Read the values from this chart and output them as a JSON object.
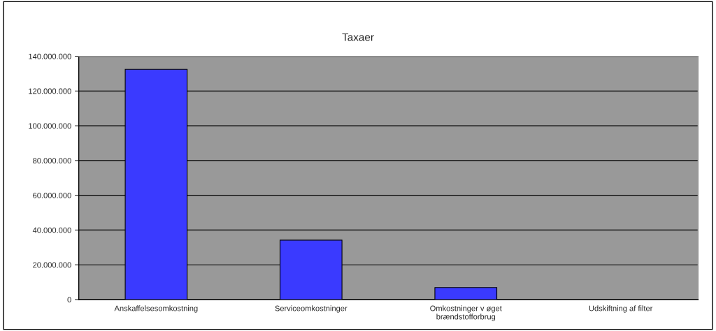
{
  "chart_data": {
    "type": "bar",
    "title": "Taxaer",
    "categories": [
      "Anskaffelsesomkostning",
      "Serviceomkostninger",
      "Omkostninger v øget\nbrændstofforbrug",
      "Udskiftning af filter"
    ],
    "values": [
      132500000,
      34200000,
      6900000,
      null
    ],
    "color": "#3a3aff",
    "ylim": [
      0,
      140000000
    ],
    "yticks": [
      0,
      {
        "value": 20000000,
        "label": "20.000.000"
      },
      {
        "value": 40000000,
        "label": "40.000.000"
      },
      {
        "value": 60000000,
        "label": "60.000.000"
      },
      {
        "value": 80000000,
        "label": "80.000.000"
      },
      {
        "value": 100000000,
        "label": "100.000.000"
      },
      {
        "value": 120000000,
        "label": "120.000.000"
      },
      {
        "value": 140000000,
        "label": "140.000.000"
      }
    ],
    "grid": "y"
  }
}
